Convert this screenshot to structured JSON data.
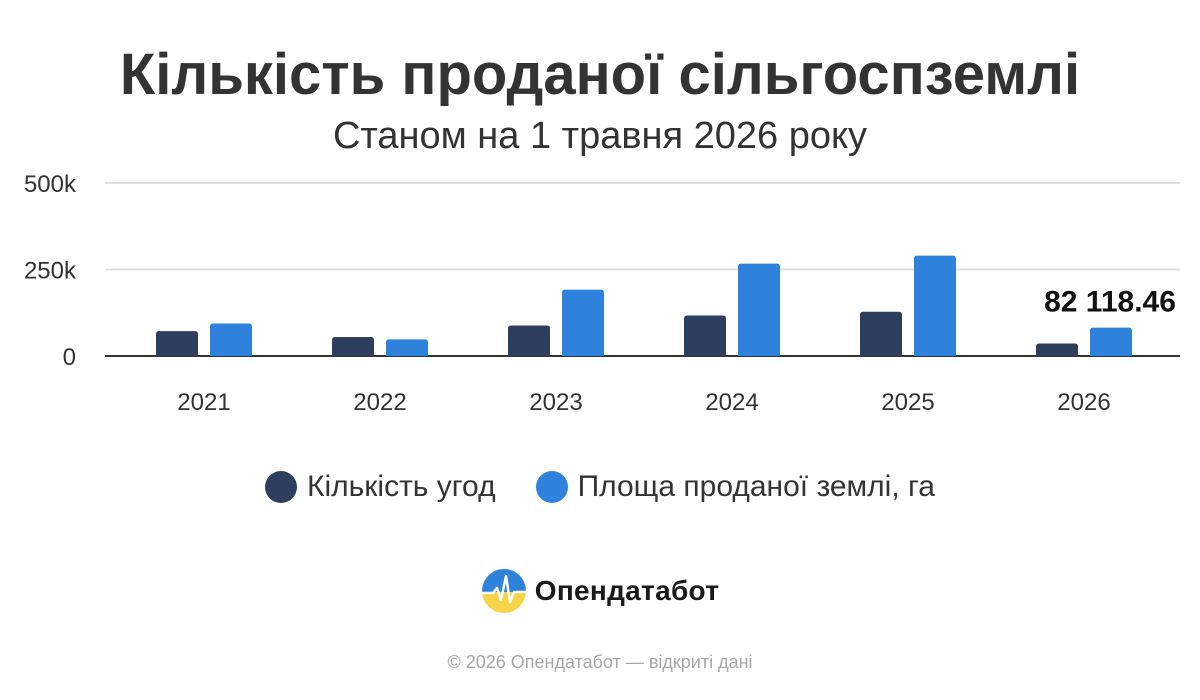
{
  "title": "Кількість проданої сільгоспземлі",
  "subtitle": "Станом на 1 травня 2026 року",
  "colors": {
    "series_deals": "#2e3e5f",
    "series_area": "#2e82dc",
    "grid": "#e0e0e0",
    "axis": "#333333"
  },
  "chart_data": {
    "type": "bar",
    "categories": [
      "2021",
      "2022",
      "2023",
      "2024",
      "2025",
      "2026"
    ],
    "series": [
      {
        "name": "Кількість угод",
        "values": [
          72000,
          55000,
          88000,
          117000,
          128000,
          36000
        ]
      },
      {
        "name": "Площа проданої землі, га",
        "values": [
          94000,
          48000,
          192000,
          267000,
          290000,
          82118.46
        ]
      }
    ],
    "ylim": [
      0,
      500000
    ],
    "yticks": [
      {
        "value": 0,
        "label": "0"
      },
      {
        "value": 250000,
        "label": "250k"
      },
      {
        "value": 500000,
        "label": "500k"
      }
    ],
    "data_labels": [
      {
        "series": 1,
        "index": 5,
        "text": "82 118.46"
      }
    ],
    "grid": true,
    "legend": "bottom-center"
  },
  "brand": {
    "name": "Опендатабот",
    "logo_icon": "opendatabot-logo-icon"
  },
  "footer": "© 2026 Опендатабот — відкриті дані"
}
